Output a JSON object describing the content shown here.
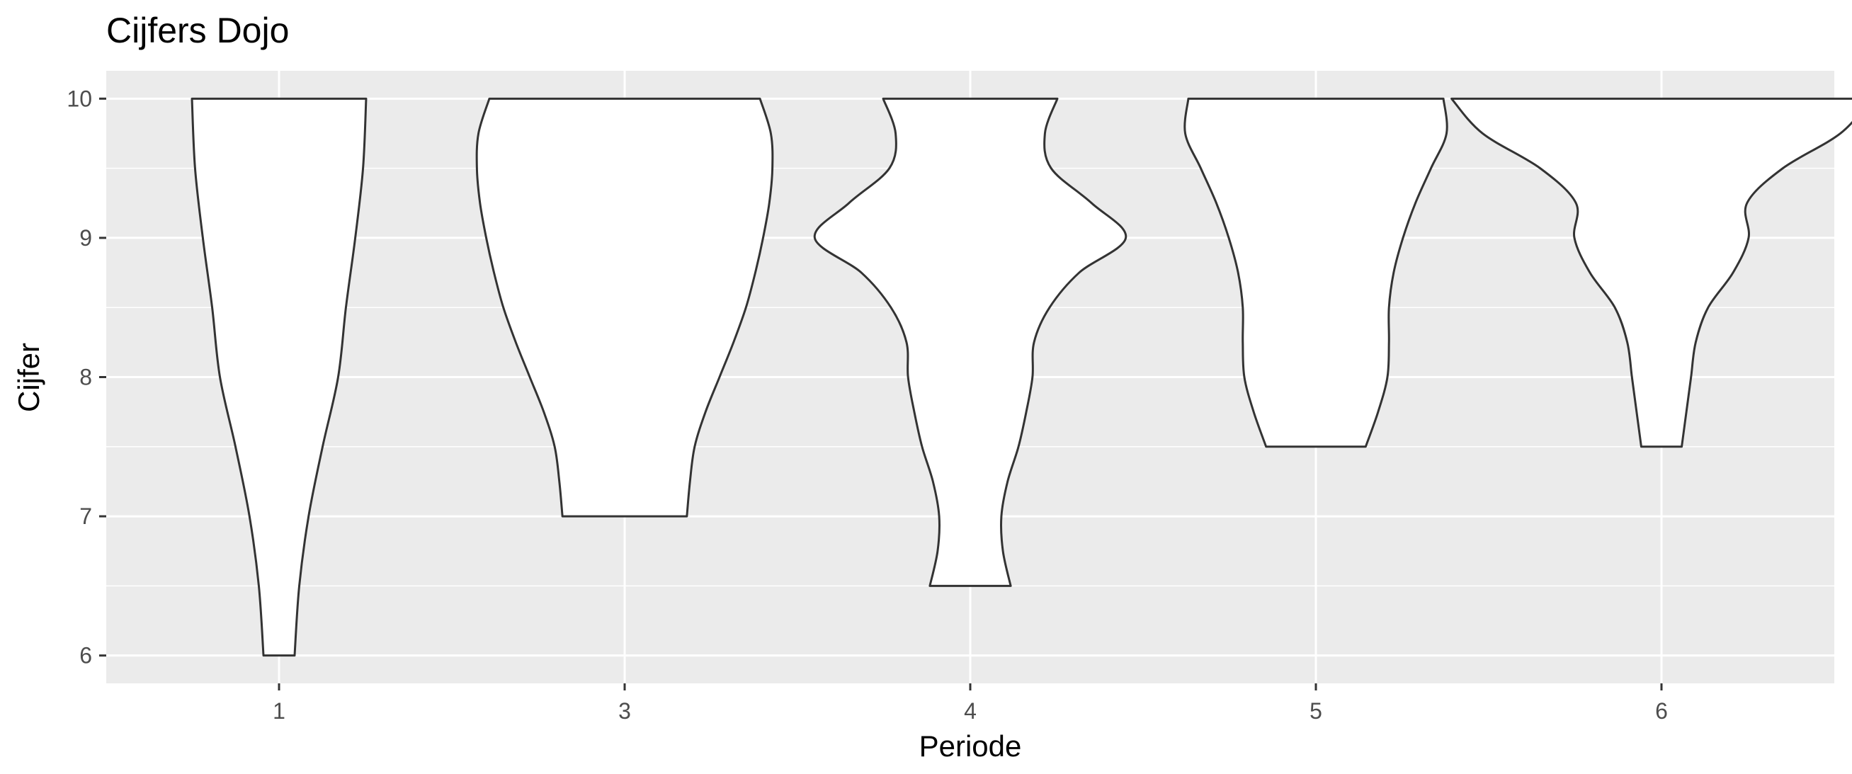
{
  "chart_data": {
    "type": "violin",
    "title": "Cijfers Dojo",
    "xlabel": "Periode",
    "ylabel": "Cijfer",
    "categories": [
      "1",
      "3",
      "4",
      "5",
      "6"
    ],
    "yticks": [
      6,
      7,
      8,
      9,
      10
    ],
    "ylim": [
      5.8,
      10.2
    ],
    "grid": true,
    "colors": {
      "panel": "#ebebeb",
      "grid": "#ffffff",
      "fill": "#ffffff",
      "outline": "#333333",
      "ticks": "#4d4d4d"
    },
    "violins": [
      {
        "category": "1",
        "min": 6.0,
        "max": 10.0,
        "density_y": [
          6.0,
          6.5,
          7.0,
          7.5,
          8.0,
          8.5,
          9.0,
          9.5,
          10.0
        ],
        "density_halfwidth": [
          0.1,
          0.13,
          0.19,
          0.28,
          0.38,
          0.43,
          0.49,
          0.54,
          0.56
        ]
      },
      {
        "category": "3",
        "min": 7.0,
        "max": 10.0,
        "density_y": [
          7.0,
          7.25,
          7.5,
          7.75,
          8.0,
          8.25,
          8.5,
          8.75,
          9.0,
          9.25,
          9.5,
          9.75,
          10.0
        ],
        "density_halfwidth": [
          0.4,
          0.42,
          0.45,
          0.52,
          0.61,
          0.7,
          0.78,
          0.84,
          0.89,
          0.93,
          0.95,
          0.94,
          0.87
        ]
      },
      {
        "category": "4",
        "min": 6.5,
        "max": 10.0,
        "density_y": [
          6.5,
          6.75,
          7.0,
          7.25,
          7.5,
          7.75,
          8.0,
          8.25,
          8.5,
          8.75,
          9.0,
          9.25,
          9.5,
          9.75,
          10.0
        ],
        "density_halfwidth": [
          0.26,
          0.21,
          0.2,
          0.24,
          0.31,
          0.36,
          0.4,
          0.41,
          0.51,
          0.7,
          1.0,
          0.78,
          0.52,
          0.48,
          0.56
        ]
      },
      {
        "category": "5",
        "min": 7.5,
        "max": 10.0,
        "density_y": [
          7.5,
          7.75,
          8.0,
          8.25,
          8.5,
          8.75,
          9.0,
          9.25,
          9.5,
          9.75,
          10.0
        ],
        "density_halfwidth": [
          0.32,
          0.4,
          0.46,
          0.47,
          0.47,
          0.5,
          0.56,
          0.64,
          0.74,
          0.84,
          0.82
        ]
      },
      {
        "category": "6",
        "min": 7.5,
        "max": 10.0,
        "density_y": [
          7.5,
          7.75,
          8.0,
          8.25,
          8.5,
          8.75,
          9.0,
          9.25,
          9.5,
          9.75,
          10.0
        ],
        "density_halfwidth": [
          0.13,
          0.16,
          0.19,
          0.22,
          0.3,
          0.46,
          0.56,
          0.55,
          0.78,
          1.15,
          1.35
        ]
      }
    ]
  }
}
